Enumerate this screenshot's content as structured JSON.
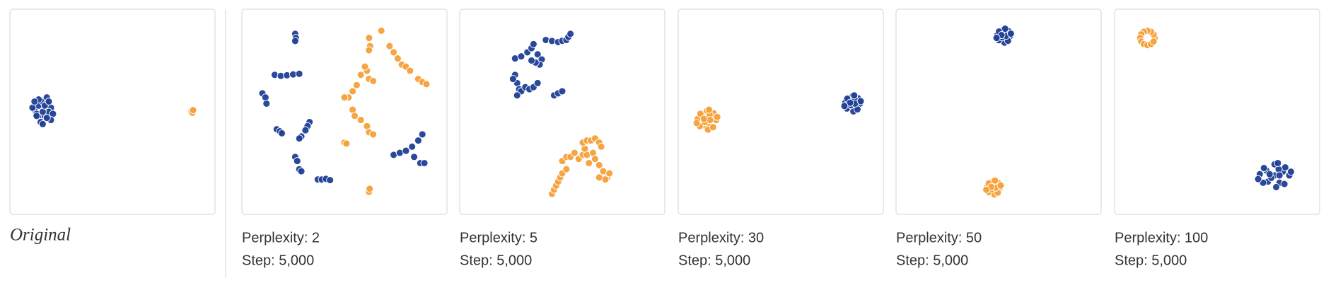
{
  "chart_data": [
    {
      "type": "scatter",
      "title": "Original",
      "xlim": [
        0,
        100
      ],
      "ylim": [
        0,
        100
      ],
      "series": [
        {
          "color": "#1f3f96",
          "x": [
            12,
            14,
            16,
            18,
            20,
            13,
            15,
            17,
            19,
            21,
            11,
            14,
            16,
            18,
            20,
            15,
            17,
            13,
            19,
            16,
            12,
            18
          ],
          "y": [
            51,
            53,
            55,
            54,
            52,
            49,
            47,
            48,
            50,
            49,
            52,
            56,
            50,
            57,
            46,
            45,
            53,
            48,
            55,
            44,
            55,
            47
          ]
        },
        {
          "color": "#f5a03a",
          "x": [
            88.5,
            89.5,
            89,
            89.3
          ],
          "y": [
            50,
            50.5,
            49.5,
            50.8
          ]
        }
      ]
    },
    {
      "type": "scatter",
      "title": "Perplexity: 2",
      "subtitle": "Step: 5,000",
      "xlim": [
        0,
        100
      ],
      "ylim": [
        0,
        100
      ],
      "series": [
        {
          "color": "#1f3f96",
          "x": [
            26,
            26.3,
            26,
            16,
            19,
            22,
            25,
            28,
            10,
            11.5,
            12,
            17,
            18.5,
            19.5,
            33,
            32,
            31,
            29,
            28,
            26,
            27,
            28,
            29,
            37,
            39,
            41,
            43,
            74,
            77,
            80,
            83,
            86,
            88,
            84,
            87,
            89
          ],
          "y": [
            88,
            86,
            84.5,
            68,
            67.5,
            67.8,
            68.2,
            68.5,
            59,
            57,
            54,
            41.5,
            40.5,
            39.5,
            45,
            43,
            41,
            38,
            37,
            28,
            26,
            22,
            21,
            17,
            17,
            17.3,
            16.7,
            29,
            30,
            31,
            33,
            36,
            39,
            28,
            25,
            25
          ]
        },
        {
          "color": "#f5a03a",
          "x": [
            68,
            62,
            62.5,
            62,
            72,
            74,
            76,
            78,
            80,
            82,
            86,
            88,
            90,
            61,
            60,
            58,
            56,
            54,
            52,
            50,
            62,
            64,
            54,
            55,
            58,
            61,
            62,
            64,
            50,
            51,
            62,
            62.3
          ],
          "y": [
            89.5,
            86,
            82,
            80,
            82,
            79,
            76,
            73,
            72,
            70,
            66,
            64.5,
            63.5,
            70,
            72,
            68,
            63,
            60,
            57,
            57,
            66,
            65,
            51,
            48,
            46,
            43,
            40,
            39,
            35,
            34.5,
            11,
            12.5
          ]
        }
      ]
    },
    {
      "type": "scatter",
      "title": "Perplexity: 5",
      "subtitle": "Step: 5,000",
      "xlim": [
        0,
        100
      ],
      "ylim": [
        0,
        100
      ],
      "series": [
        {
          "color": "#1f3f96",
          "x": [
            42,
            45,
            48,
            50,
            52,
            53,
            54,
            27,
            30,
            33,
            35,
            36,
            38,
            40,
            39,
            37,
            35,
            27,
            28,
            29,
            30,
            32,
            34,
            36,
            38,
            28,
            26,
            46,
            48,
            50
          ],
          "y": [
            85,
            84.5,
            84,
            84.6,
            85,
            86.5,
            88,
            76,
            77,
            79,
            81,
            83,
            78,
            75.5,
            73,
            74,
            75,
            68,
            64,
            61,
            60,
            62,
            61,
            62,
            64,
            58,
            66,
            58,
            59,
            60
          ]
        },
        {
          "color": "#f5a03a",
          "x": [
            45,
            46,
            47,
            48,
            49,
            50,
            52,
            50,
            52,
            54,
            56,
            58,
            60,
            62,
            61,
            60,
            62,
            64,
            66,
            68,
            69,
            65,
            66,
            68,
            70,
            72,
            73,
            71,
            68,
            63
          ],
          "y": [
            10,
            12,
            14,
            16,
            18,
            20,
            22,
            26,
            28,
            28,
            30,
            27,
            29,
            29,
            32,
            35,
            36,
            36,
            37,
            35,
            33,
            30,
            27,
            24,
            21,
            18,
            20,
            17,
            18,
            25
          ]
        }
      ]
    },
    {
      "type": "scatter",
      "title": "Perplexity: 30",
      "subtitle": "Step: 5,000",
      "xlim": [
        0,
        100
      ],
      "ylim": [
        0,
        100
      ],
      "series": [
        {
          "color": "#1f3f96",
          "x": [
            85,
            87,
            83,
            86.2,
            83.4,
            88.6,
            81.4,
            85,
            85.4,
            87.6,
            82.4,
            87.4,
            82.2,
            86,
            84.2,
            86.2,
            83.8,
            89,
            81,
            85.8
          ],
          "y": [
            54,
            55.2,
            55.6,
            51.6,
            52,
            54,
            54.4,
            57.6,
            50.2,
            56.6,
            56.4,
            51.2,
            51.6,
            56,
            53.2,
            54,
            54.4,
            55.2,
            52.8,
            58
          ]
        },
        {
          "color": "#f5a03a",
          "x": [
            14,
            16.5,
            11.5,
            15.5,
            12,
            18.5,
            9.5,
            14,
            14.5,
            17.3,
            10.8,
            17,
            10.5,
            15.3,
            13,
            15.5,
            12.5,
            19,
            9,
            15
          ],
          "y": [
            46,
            47.5,
            48,
            43,
            43.5,
            46,
            46.5,
            50.5,
            41.3,
            49.3,
            49,
            42.5,
            43,
            48.5,
            45,
            46,
            46.5,
            47.5,
            44.5,
            51
          ]
        }
      ]
    },
    {
      "type": "scatter",
      "title": "Perplexity: 50",
      "subtitle": "Step: 5,000",
      "xlim": [
        0,
        100
      ],
      "ylim": [
        0,
        100
      ],
      "series": [
        {
          "color": "#1f3f96",
          "x": [
            52.5,
            54.3,
            50.8,
            53.6,
            51.1,
            55.7,
            49.4,
            52.5,
            52.9,
            54.8,
            50.2,
            54.6,
            50.1,
            53.4,
            51.8,
            53.6,
            51.4,
            56,
            49,
            53.2
          ],
          "y": [
            87,
            88.1,
            88.4,
            84.9,
            85.3,
            87,
            87.4,
            90.2,
            83.7,
            89.3,
            89.1,
            84.6,
            84.9,
            88.8,
            86.3,
            87,
            87.4,
            88.1,
            86,
            90.5
          ]
        },
        {
          "color": "#f5a03a",
          "x": [
            47.5,
            49.3,
            45.8,
            48.6,
            46.1,
            50.7,
            44.4,
            47.5,
            47.9,
            49.8,
            45.2,
            49.6,
            45.1,
            48.4,
            46.8,
            48.6,
            46.4,
            51,
            44,
            48.2
          ],
          "y": [
            13,
            14.1,
            14.4,
            10.9,
            11.3,
            13,
            13.4,
            16.2,
            9.7,
            15.3,
            15.1,
            10.6,
            10.9,
            14.8,
            12.3,
            13,
            13.4,
            14.1,
            12,
            16.5
          ]
        }
      ]
    },
    {
      "type": "scatter",
      "title": "Perplexity: 100",
      "subtitle": "Step: 5,000",
      "xlim": [
        0,
        100
      ],
      "ylim": [
        0,
        100
      ],
      "series": [
        {
          "color": "#1f3f96",
          "x": [
            78,
            82,
            74,
            80.4,
            74.8,
            85.2,
            70.8,
            78,
            78.8,
            83.2,
            72.8,
            82.8,
            72.4,
            80,
            76.4,
            80.4,
            75.6,
            86,
            70,
            79.6
          ],
          "y": [
            19,
            20.8,
            21.4,
            15.4,
            16,
            19,
            19.6,
            24.4,
            13.3,
            22.9,
            22.6,
            14.8,
            15.4,
            22,
            17.8,
            19,
            19.6,
            20.8,
            17.2,
            25
          ]
        },
        {
          "color": "#f5a03a",
          "x": [
            19.5,
            19,
            17.75,
            16,
            14.25,
            13,
            12.5,
            13,
            14.25,
            16,
            17.75,
            19
          ],
          "y": [
            86,
            87.75,
            89,
            89.5,
            89,
            87.75,
            86,
            84.25,
            83,
            82.5,
            83,
            84.25
          ]
        }
      ]
    }
  ]
}
